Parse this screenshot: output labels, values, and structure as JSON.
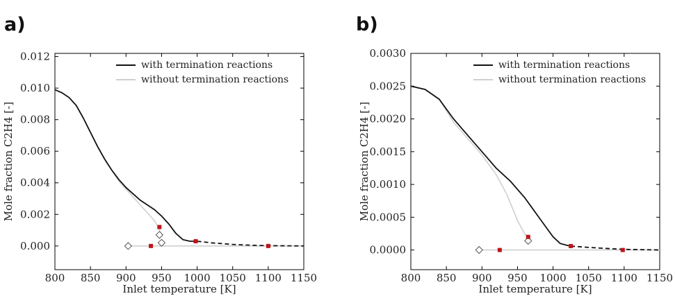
{
  "chart_data": [
    {
      "panel_label": "a)",
      "type": "line",
      "xlabel": "Inlet temperature [K]",
      "ylabel": "Mole fraction C2H4 [-]",
      "xlim": [
        800,
        1150
      ],
      "ylim": [
        -0.0015,
        0.0122
      ],
      "xticks": [
        800,
        850,
        900,
        950,
        1000,
        1050,
        1100,
        1150
      ],
      "yticks": [
        0.0,
        0.002,
        0.004,
        0.006,
        0.008,
        0.01,
        0.012
      ],
      "ytick_labels": [
        "0.000",
        "0.002",
        "0.004",
        "0.006",
        "0.008",
        "0.010",
        "0.012"
      ],
      "legend_position": "top-right",
      "series": [
        {
          "name": "with termination reactions",
          "color": "#111111",
          "x": [
            800,
            810,
            820,
            830,
            840,
            850,
            860,
            870,
            880,
            890,
            900,
            910,
            920,
            930,
            940,
            950,
            960,
            970,
            980,
            990,
            1000
          ],
          "y": [
            0.0099,
            0.0097,
            0.0094,
            0.0089,
            0.0081,
            0.0072,
            0.0063,
            0.0055,
            0.0048,
            0.0042,
            0.0037,
            0.0033,
            0.0029,
            0.0026,
            0.0023,
            0.0019,
            0.0014,
            0.0008,
            0.0004,
            0.0003,
            0.0003
          ],
          "dashed_x": [
            1000,
            1020,
            1050,
            1080,
            1100,
            1150
          ],
          "dashed_y": [
            0.0003,
            0.0002,
            0.0001,
            4e-05,
            2e-05,
            0.0
          ]
        },
        {
          "name": "without termination reactions",
          "color": "#cfcfcf",
          "x": [
            800,
            810,
            820,
            830,
            840,
            850,
            860,
            870,
            880,
            890,
            900,
            910,
            920,
            930,
            940,
            945,
            948
          ],
          "y": [
            0.0099,
            0.0097,
            0.0094,
            0.0089,
            0.0081,
            0.0072,
            0.0063,
            0.0055,
            0.0048,
            0.0041,
            0.0036,
            0.0031,
            0.0026,
            0.0021,
            0.0016,
            0.0012,
            0.0009
          ],
          "baseline_x": [
            903,
            1150
          ],
          "baseline_y": [
            0.0,
            0.0
          ]
        }
      ],
      "markers": {
        "red_squares": [
          [
            935,
            0.0
          ],
          [
            947,
            0.0012
          ],
          [
            998,
            0.0003
          ],
          [
            1100,
            0.0
          ]
        ],
        "open_diamonds": [
          [
            903,
            0.0
          ],
          [
            947,
            0.0007
          ],
          [
            950,
            0.0002
          ]
        ]
      }
    },
    {
      "panel_label": "b)",
      "type": "line",
      "xlabel": "Inlet temperature [K]",
      "ylabel": "Mole fraction C2H4 [-]",
      "xlim": [
        800,
        1150
      ],
      "ylim": [
        -0.0003,
        0.003
      ],
      "xticks": [
        800,
        850,
        900,
        950,
        1000,
        1050,
        1100,
        1150
      ],
      "yticks": [
        0.0,
        0.0005,
        0.001,
        0.0015,
        0.002,
        0.0025,
        0.003
      ],
      "ytick_labels": [
        "0.0000",
        "0.0005",
        "0.0010",
        "0.0015",
        "0.0020",
        "0.0025",
        "0.0030"
      ],
      "legend_position": "top-right",
      "series": [
        {
          "name": "with termination reactions",
          "color": "#111111",
          "x": [
            800,
            820,
            840,
            860,
            880,
            900,
            920,
            940,
            960,
            970,
            980,
            990,
            1000,
            1010,
            1020,
            1025
          ],
          "y": [
            0.0025,
            0.00245,
            0.0023,
            0.002,
            0.00175,
            0.0015,
            0.00125,
            0.00105,
            0.0008,
            0.00065,
            0.0005,
            0.00035,
            0.0002,
            0.0001,
            7e-05,
            6e-05
          ],
          "dashed_x": [
            1025,
            1050,
            1080,
            1100,
            1150
          ],
          "dashed_y": [
            6e-05,
            4e-05,
            2e-05,
            1e-05,
            0.0
          ]
        },
        {
          "name": "without termination reactions",
          "color": "#cfcfcf",
          "x": [
            800,
            820,
            840,
            860,
            880,
            900,
            920,
            935,
            950,
            960,
            965
          ],
          "y": [
            0.0025,
            0.00245,
            0.0023,
            0.00195,
            0.0017,
            0.00145,
            0.00115,
            0.00085,
            0.00045,
            0.00025,
            0.00018
          ],
          "baseline_x": [
            896,
            1150
          ],
          "baseline_y": [
            0.0,
            0.0
          ]
        }
      ],
      "markers": {
        "red_squares": [
          [
            925,
            0.0
          ],
          [
            965,
            0.0002
          ],
          [
            1025,
            6e-05
          ],
          [
            1098,
            0.0
          ]
        ],
        "open_diamonds": [
          [
            896,
            0.0
          ],
          [
            965,
            0.00014
          ]
        ]
      }
    }
  ]
}
